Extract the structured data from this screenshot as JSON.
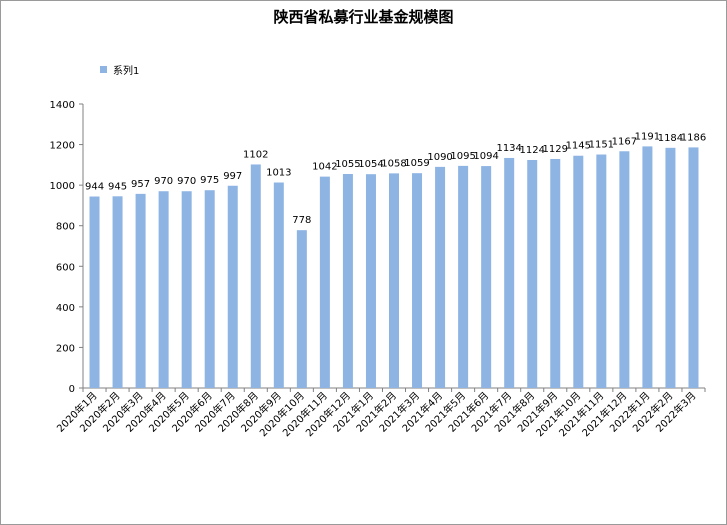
{
  "chart_data": {
    "type": "bar",
    "title": "陕西省私募行业基金规模图",
    "xlabel": "",
    "ylabel": "",
    "ylim": [
      0,
      1400
    ],
    "yticks": [
      0,
      200,
      400,
      600,
      800,
      1000,
      1200,
      1400
    ],
    "grid": false,
    "legend_position": "top-left",
    "bar_color": "#8eb4e3",
    "categories": [
      "2020年1月",
      "2020年2月",
      "2020年3月",
      "2020年4月",
      "2020年5月",
      "2020年6月",
      "2020年7月",
      "2020年8月",
      "2020年9月",
      "2020年10月",
      "2020年11月",
      "2020年12月",
      "2021年1月",
      "2021年2月",
      "2021年3月",
      "2021年4月",
      "2021年5月",
      "2021年6月",
      "2021年7月",
      "2021年8月",
      "2021年9月",
      "2021年10月",
      "2021年11月",
      "2021年12月",
      "2022年1月",
      "2022年2月",
      "2022年3月"
    ],
    "series": [
      {
        "name": "系列1",
        "values": [
          944,
          945,
          957,
          970,
          970,
          975,
          997,
          1102,
          1013,
          778,
          1042,
          1055,
          1054,
          1058,
          1059,
          1090,
          1095,
          1094,
          1134,
          1124,
          1129,
          1145,
          1151,
          1167,
          1191,
          1184,
          1186
        ]
      }
    ]
  }
}
